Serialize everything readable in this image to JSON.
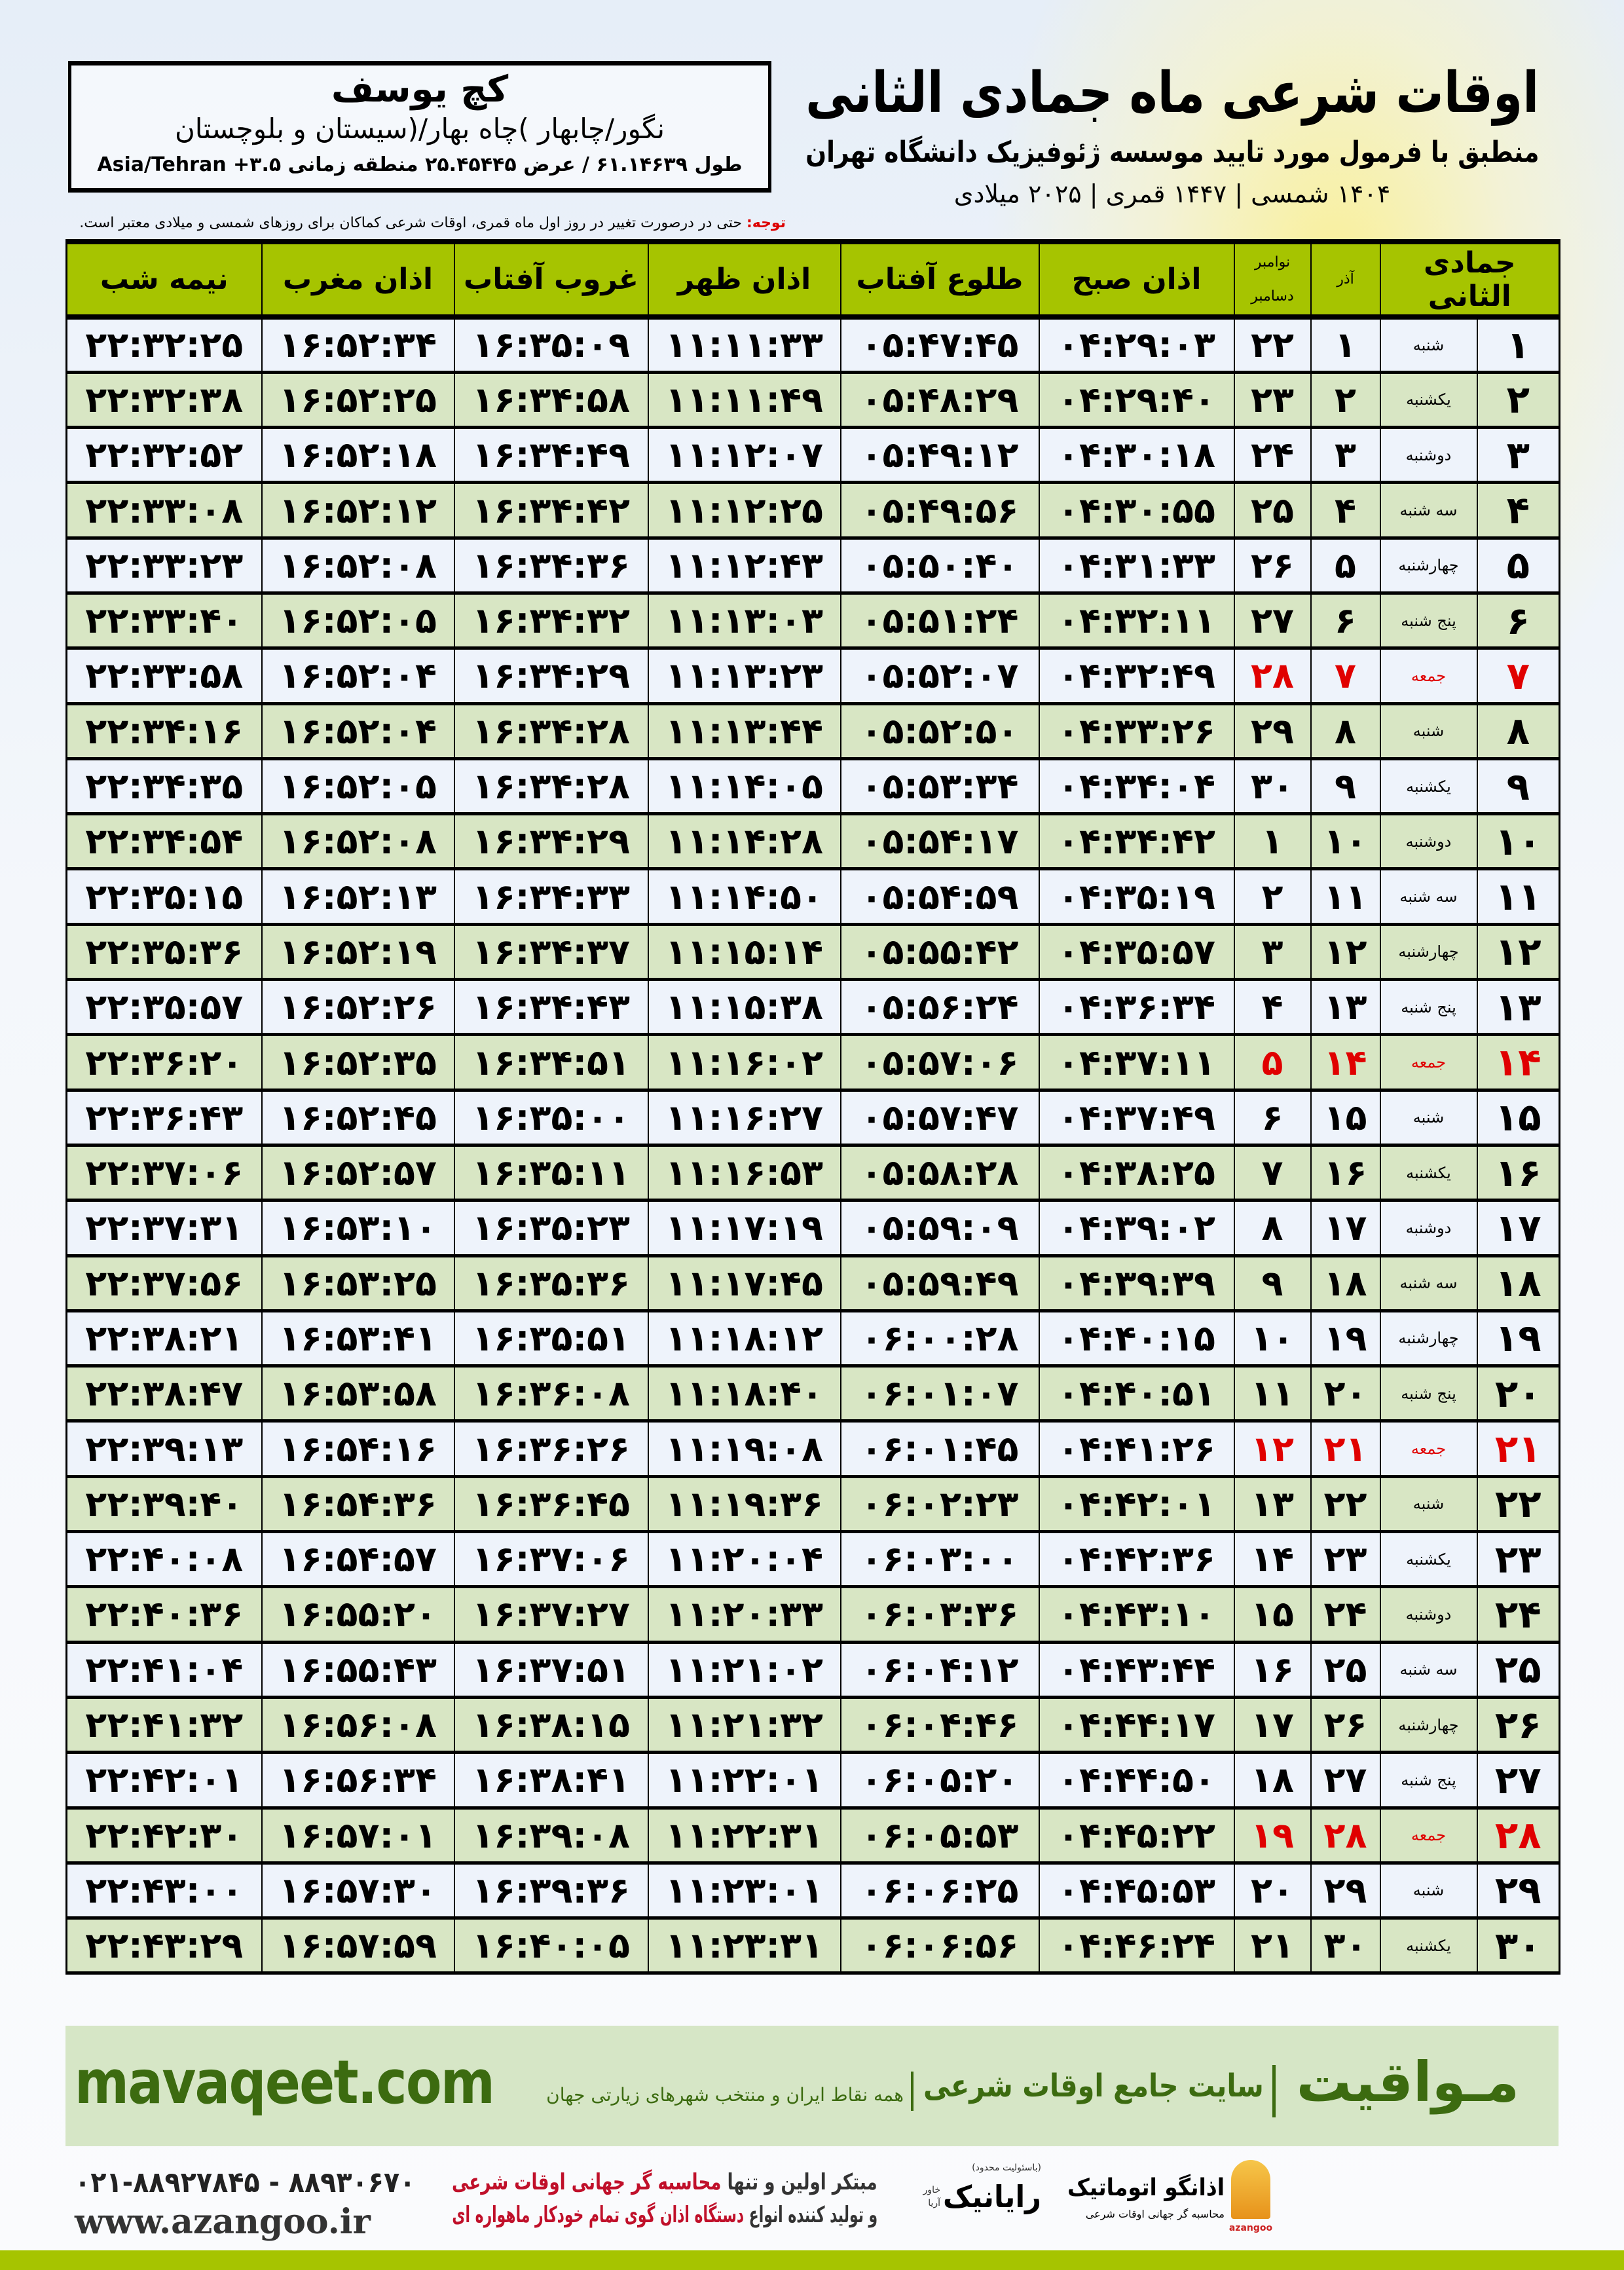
{
  "location": {
    "name": "کچ یوسف",
    "region": "نگور/چابهار )چاه بهار/(سیستان و بلوچستان",
    "coords": "طول ۶۱.۱۴۶۳۹ / عرض ۲۵.۴۵۴۴۵ منطقه زمانی ۳.۵+ Asia/Tehran"
  },
  "header": {
    "title": "اوقات شرعی ماه جمادی الثانی",
    "subtitle": "منطبق با فرمول مورد تایید موسسه ژئوفیزیک دانشگاه تهران",
    "years": "۱۴۰۴ شمسی | ۱۴۴۷ قمری | ۲۰۲۵ میلادی"
  },
  "note": {
    "label": "توجه:",
    "text": " حتی در درصورت تغییر در روز اول ماه قمری، اوقات شرعی کماکان برای روزهای شمسی و میلادی معتبر است."
  },
  "colors": {
    "header_green": "#a6c400",
    "row_green": "#d8e6c4",
    "friday_red": "#e00000",
    "brand_green": "#3c6b10"
  },
  "columns": {
    "month": "جمادی الثانی",
    "azar": "آذر",
    "nov": "نوامبر",
    "dec": "دسامبر",
    "sobh": "اذان صبح",
    "tolu": "طلوع آفتاب",
    "zohr": "اذان ظهر",
    "ghoroob": "غروب آفتاب",
    "maghrib": "اذان مغرب",
    "nimeshab": "نیمه شب"
  },
  "rows": [
    [
      "۱",
      "شنبه",
      "۱",
      "۲۲",
      "۰۴:۲۹:۰۳",
      "۰۵:۴۷:۴۵",
      "۱۱:۱۱:۳۳",
      "۱۶:۳۵:۰۹",
      "۱۶:۵۲:۳۴",
      "۲۲:۳۲:۲۵"
    ],
    [
      "۲",
      "یکشنبه",
      "۲",
      "۲۳",
      "۰۴:۲۹:۴۰",
      "۰۵:۴۸:۲۹",
      "۱۱:۱۱:۴۹",
      "۱۶:۳۴:۵۸",
      "۱۶:۵۲:۲۵",
      "۲۲:۳۲:۳۸"
    ],
    [
      "۳",
      "دوشنبه",
      "۳",
      "۲۴",
      "۰۴:۳۰:۱۸",
      "۰۵:۴۹:۱۲",
      "۱۱:۱۲:۰۷",
      "۱۶:۳۴:۴۹",
      "۱۶:۵۲:۱۸",
      "۲۲:۳۲:۵۲"
    ],
    [
      "۴",
      "سه شنبه",
      "۴",
      "۲۵",
      "۰۴:۳۰:۵۵",
      "۰۵:۴۹:۵۶",
      "۱۱:۱۲:۲۵",
      "۱۶:۳۴:۴۲",
      "۱۶:۵۲:۱۲",
      "۲۲:۳۳:۰۸"
    ],
    [
      "۵",
      "چهارشنبه",
      "۵",
      "۲۶",
      "۰۴:۳۱:۳۳",
      "۰۵:۵۰:۴۰",
      "۱۱:۱۲:۴۳",
      "۱۶:۳۴:۳۶",
      "۱۶:۵۲:۰۸",
      "۲۲:۳۳:۲۳"
    ],
    [
      "۶",
      "پنج شنبه",
      "۶",
      "۲۷",
      "۰۴:۳۲:۱۱",
      "۰۵:۵۱:۲۴",
      "۱۱:۱۳:۰۳",
      "۱۶:۳۴:۳۲",
      "۱۶:۵۲:۰۵",
      "۲۲:۳۳:۴۰"
    ],
    [
      "۷",
      "جمعه",
      "۷",
      "۲۸",
      "۰۴:۳۲:۴۹",
      "۰۵:۵۲:۰۷",
      "۱۱:۱۳:۲۳",
      "۱۶:۳۴:۲۹",
      "۱۶:۵۲:۰۴",
      "۲۲:۳۳:۵۸"
    ],
    [
      "۸",
      "شنبه",
      "۸",
      "۲۹",
      "۰۴:۳۳:۲۶",
      "۰۵:۵۲:۵۰",
      "۱۱:۱۳:۴۴",
      "۱۶:۳۴:۲۸",
      "۱۶:۵۲:۰۴",
      "۲۲:۳۴:۱۶"
    ],
    [
      "۹",
      "یکشنبه",
      "۹",
      "۳۰",
      "۰۴:۳۴:۰۴",
      "۰۵:۵۳:۳۴",
      "۱۱:۱۴:۰۵",
      "۱۶:۳۴:۲۸",
      "۱۶:۵۲:۰۵",
      "۲۲:۳۴:۳۵"
    ],
    [
      "۱۰",
      "دوشنبه",
      "۱۰",
      "۱",
      "۰۴:۳۴:۴۲",
      "۰۵:۵۴:۱۷",
      "۱۱:۱۴:۲۸",
      "۱۶:۳۴:۲۹",
      "۱۶:۵۲:۰۸",
      "۲۲:۳۴:۵۴"
    ],
    [
      "۱۱",
      "سه شنبه",
      "۱۱",
      "۲",
      "۰۴:۳۵:۱۹",
      "۰۵:۵۴:۵۹",
      "۱۱:۱۴:۵۰",
      "۱۶:۳۴:۳۳",
      "۱۶:۵۲:۱۳",
      "۲۲:۳۵:۱۵"
    ],
    [
      "۱۲",
      "چهارشنبه",
      "۱۲",
      "۳",
      "۰۴:۳۵:۵۷",
      "۰۵:۵۵:۴۲",
      "۱۱:۱۵:۱۴",
      "۱۶:۳۴:۳۷",
      "۱۶:۵۲:۱۹",
      "۲۲:۳۵:۳۶"
    ],
    [
      "۱۳",
      "پنج شنبه",
      "۱۳",
      "۴",
      "۰۴:۳۶:۳۴",
      "۰۵:۵۶:۲۴",
      "۱۱:۱۵:۳۸",
      "۱۶:۳۴:۴۳",
      "۱۶:۵۲:۲۶",
      "۲۲:۳۵:۵۷"
    ],
    [
      "۱۴",
      "جمعه",
      "۱۴",
      "۵",
      "۰۴:۳۷:۱۱",
      "۰۵:۵۷:۰۶",
      "۱۱:۱۶:۰۲",
      "۱۶:۳۴:۵۱",
      "۱۶:۵۲:۳۵",
      "۲۲:۳۶:۲۰"
    ],
    [
      "۱۵",
      "شنبه",
      "۱۵",
      "۶",
      "۰۴:۳۷:۴۹",
      "۰۵:۵۷:۴۷",
      "۱۱:۱۶:۲۷",
      "۱۶:۳۵:۰۰",
      "۱۶:۵۲:۴۵",
      "۲۲:۳۶:۴۳"
    ],
    [
      "۱۶",
      "یکشنبه",
      "۱۶",
      "۷",
      "۰۴:۳۸:۲۵",
      "۰۵:۵۸:۲۸",
      "۱۱:۱۶:۵۳",
      "۱۶:۳۵:۱۱",
      "۱۶:۵۲:۵۷",
      "۲۲:۳۷:۰۶"
    ],
    [
      "۱۷",
      "دوشنبه",
      "۱۷",
      "۸",
      "۰۴:۳۹:۰۲",
      "۰۵:۵۹:۰۹",
      "۱۱:۱۷:۱۹",
      "۱۶:۳۵:۲۳",
      "۱۶:۵۳:۱۰",
      "۲۲:۳۷:۳۱"
    ],
    [
      "۱۸",
      "سه شنبه",
      "۱۸",
      "۹",
      "۰۴:۳۹:۳۹",
      "۰۵:۵۹:۴۹",
      "۱۱:۱۷:۴۵",
      "۱۶:۳۵:۳۶",
      "۱۶:۵۳:۲۵",
      "۲۲:۳۷:۵۶"
    ],
    [
      "۱۹",
      "چهارشنبه",
      "۱۹",
      "۱۰",
      "۰۴:۴۰:۱۵",
      "۰۶:۰۰:۲۸",
      "۱۱:۱۸:۱۲",
      "۱۶:۳۵:۵۱",
      "۱۶:۵۳:۴۱",
      "۲۲:۳۸:۲۱"
    ],
    [
      "۲۰",
      "پنج شنبه",
      "۲۰",
      "۱۱",
      "۰۴:۴۰:۵۱",
      "۰۶:۰۱:۰۷",
      "۱۱:۱۸:۴۰",
      "۱۶:۳۶:۰۸",
      "۱۶:۵۳:۵۸",
      "۲۲:۳۸:۴۷"
    ],
    [
      "۲۱",
      "جمعه",
      "۲۱",
      "۱۲",
      "۰۴:۴۱:۲۶",
      "۰۶:۰۱:۴۵",
      "۱۱:۱۹:۰۸",
      "۱۶:۳۶:۲۶",
      "۱۶:۵۴:۱۶",
      "۲۲:۳۹:۱۳"
    ],
    [
      "۲۲",
      "شنبه",
      "۲۲",
      "۱۳",
      "۰۴:۴۲:۰۱",
      "۰۶:۰۲:۲۳",
      "۱۱:۱۹:۳۶",
      "۱۶:۳۶:۴۵",
      "۱۶:۵۴:۳۶",
      "۲۲:۳۹:۴۰"
    ],
    [
      "۲۳",
      "یکشنبه",
      "۲۳",
      "۱۴",
      "۰۴:۴۲:۳۶",
      "۰۶:۰۳:۰۰",
      "۱۱:۲۰:۰۴",
      "۱۶:۳۷:۰۶",
      "۱۶:۵۴:۵۷",
      "۲۲:۴۰:۰۸"
    ],
    [
      "۲۴",
      "دوشنبه",
      "۲۴",
      "۱۵",
      "۰۴:۴۳:۱۰",
      "۰۶:۰۳:۳۶",
      "۱۱:۲۰:۳۳",
      "۱۶:۳۷:۲۷",
      "۱۶:۵۵:۲۰",
      "۲۲:۴۰:۳۶"
    ],
    [
      "۲۵",
      "سه شنبه",
      "۲۵",
      "۱۶",
      "۰۴:۴۳:۴۴",
      "۰۶:۰۴:۱۲",
      "۱۱:۲۱:۰۲",
      "۱۶:۳۷:۵۱",
      "۱۶:۵۵:۴۳",
      "۲۲:۴۱:۰۴"
    ],
    [
      "۲۶",
      "چهارشنبه",
      "۲۶",
      "۱۷",
      "۰۴:۴۴:۱۷",
      "۰۶:۰۴:۴۶",
      "۱۱:۲۱:۳۲",
      "۱۶:۳۸:۱۵",
      "۱۶:۵۶:۰۸",
      "۲۲:۴۱:۳۲"
    ],
    [
      "۲۷",
      "پنج شنبه",
      "۲۷",
      "۱۸",
      "۰۴:۴۴:۵۰",
      "۰۶:۰۵:۲۰",
      "۱۱:۲۲:۰۱",
      "۱۶:۳۸:۴۱",
      "۱۶:۵۶:۳۴",
      "۲۲:۴۲:۰۱"
    ],
    [
      "۲۸",
      "جمعه",
      "۲۸",
      "۱۹",
      "۰۴:۴۵:۲۲",
      "۰۶:۰۵:۵۳",
      "۱۱:۲۲:۳۱",
      "۱۶:۳۹:۰۸",
      "۱۶:۵۷:۰۱",
      "۲۲:۴۲:۳۰"
    ],
    [
      "۲۹",
      "شنبه",
      "۲۹",
      "۲۰",
      "۰۴:۴۵:۵۳",
      "۰۶:۰۶:۲۵",
      "۱۱:۲۳:۰۱",
      "۱۶:۳۹:۳۶",
      "۱۶:۵۷:۳۰",
      "۲۲:۴۳:۰۰"
    ],
    [
      "۳۰",
      "یکشنبه",
      "۳۰",
      "۲۱",
      "۰۴:۴۶:۲۴",
      "۰۶:۰۶:۵۶",
      "۱۱:۲۳:۳۱",
      "۱۶:۴۰:۰۵",
      "۱۶:۵۷:۵۹",
      "۲۲:۴۳:۲۹"
    ]
  ],
  "banner": {
    "brand": "مـواقیت",
    "slogan": "سایت جامع اوقات شرعی",
    "sub": "همه نقاط ایران و منتخب شهرهای زیارتی جهان",
    "site": "mavaqeet.com"
  },
  "footer": {
    "phone": "۰۲۱-۸۸۹۲۷۸۴۵ - ۸۸۹۳۰۶۷۰",
    "web": "www.azangoo.ir",
    "line1_a": "مبتکر اولین و تنها ",
    "line1_b": "محاسبه گر جهانی اوقات شرعی",
    "line2_a": "و تولید کننده انواع ",
    "line2_b": "دستگاه اذان گوی تمام خودکار ماهواره ای",
    "rayanik": "رایانیک",
    "rayanik_small": "(باسئولیت محدود)",
    "rayanik_side": "خاور آریا",
    "azangoo": "اذانگو اتوماتیک",
    "azangoo_tag": "محاسبه گر جهانی اوقات شرعی",
    "azangoo_en": "azangoo"
  }
}
